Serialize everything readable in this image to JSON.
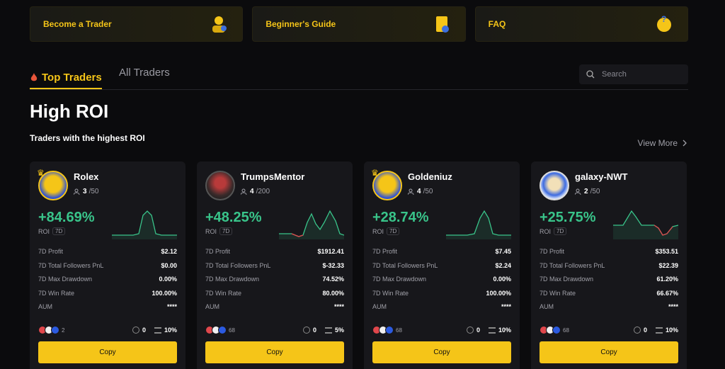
{
  "promos": [
    {
      "label": "Become a Trader",
      "icon": "trader-icon"
    },
    {
      "label": "Beginner's Guide",
      "icon": "guide-icon"
    },
    {
      "label": "FAQ",
      "icon": "faq-icon"
    }
  ],
  "tabs": {
    "top": "Top Traders",
    "all": "All Traders"
  },
  "search": {
    "placeholder": "Search"
  },
  "section": {
    "title": "High ROI",
    "subtitle": "Traders with the highest ROI",
    "view_more": "View More"
  },
  "colors": {
    "accent": "#f5c518",
    "positive": "#39c48a",
    "negative": "#e0474c",
    "card": "#17171b"
  },
  "cards": [
    {
      "name": "Rolex",
      "followers_current": "3",
      "followers_max": "/50",
      "roi": "+84.69%",
      "roi_label": "ROI",
      "period": "7D",
      "stats": [
        {
          "k": "7D Profit",
          "v": "$2.12"
        },
        {
          "k": "7D Total Followers PnL",
          "v": "$0.00"
        },
        {
          "k": "7D Max Drawdown",
          "v": "0.00%"
        },
        {
          "k": "7D Win Rate",
          "v": "100.00%"
        },
        {
          "k": "AUM",
          "v": "****"
        }
      ],
      "coin_count": "2",
      "mini_a": "0",
      "mini_b": "10%",
      "copy": "Copy"
    },
    {
      "name": "TrumpsMentor",
      "followers_current": "4",
      "followers_max": "/200",
      "roi": "+48.25%",
      "roi_label": "ROI",
      "period": "7D",
      "stats": [
        {
          "k": "7D Profit",
          "v": "$1912.41"
        },
        {
          "k": "7D Total Followers PnL",
          "v": "$-32.33"
        },
        {
          "k": "7D Max Drawdown",
          "v": "74.52%"
        },
        {
          "k": "7D Win Rate",
          "v": "80.00%"
        },
        {
          "k": "AUM",
          "v": "****"
        }
      ],
      "coin_count": "68",
      "mini_a": "0",
      "mini_b": "5%",
      "copy": "Copy"
    },
    {
      "name": "Goldeniuz",
      "followers_current": "4",
      "followers_max": "/50",
      "roi": "+28.74%",
      "roi_label": "ROI",
      "period": "7D",
      "stats": [
        {
          "k": "7D Profit",
          "v": "$7.45"
        },
        {
          "k": "7D Total Followers PnL",
          "v": "$2.24"
        },
        {
          "k": "7D Max Drawdown",
          "v": "0.00%"
        },
        {
          "k": "7D Win Rate",
          "v": "100.00%"
        },
        {
          "k": "AUM",
          "v": "****"
        }
      ],
      "coin_count": "68",
      "mini_a": "0",
      "mini_b": "10%",
      "copy": "Copy"
    },
    {
      "name": "galaxy-NWT",
      "followers_current": "2",
      "followers_max": "/50",
      "roi": "+25.75%",
      "roi_label": "ROI",
      "period": "7D",
      "stats": [
        {
          "k": "7D Profit",
          "v": "$353.51"
        },
        {
          "k": "7D Total Followers PnL",
          "v": "$22.39"
        },
        {
          "k": "7D Max Drawdown",
          "v": "61.20%"
        },
        {
          "k": "7D Win Rate",
          "v": "66.67%"
        },
        {
          "k": "AUM",
          "v": "****"
        }
      ],
      "coin_count": "68",
      "mini_a": "0",
      "mini_b": "10%",
      "copy": "Copy"
    }
  ]
}
